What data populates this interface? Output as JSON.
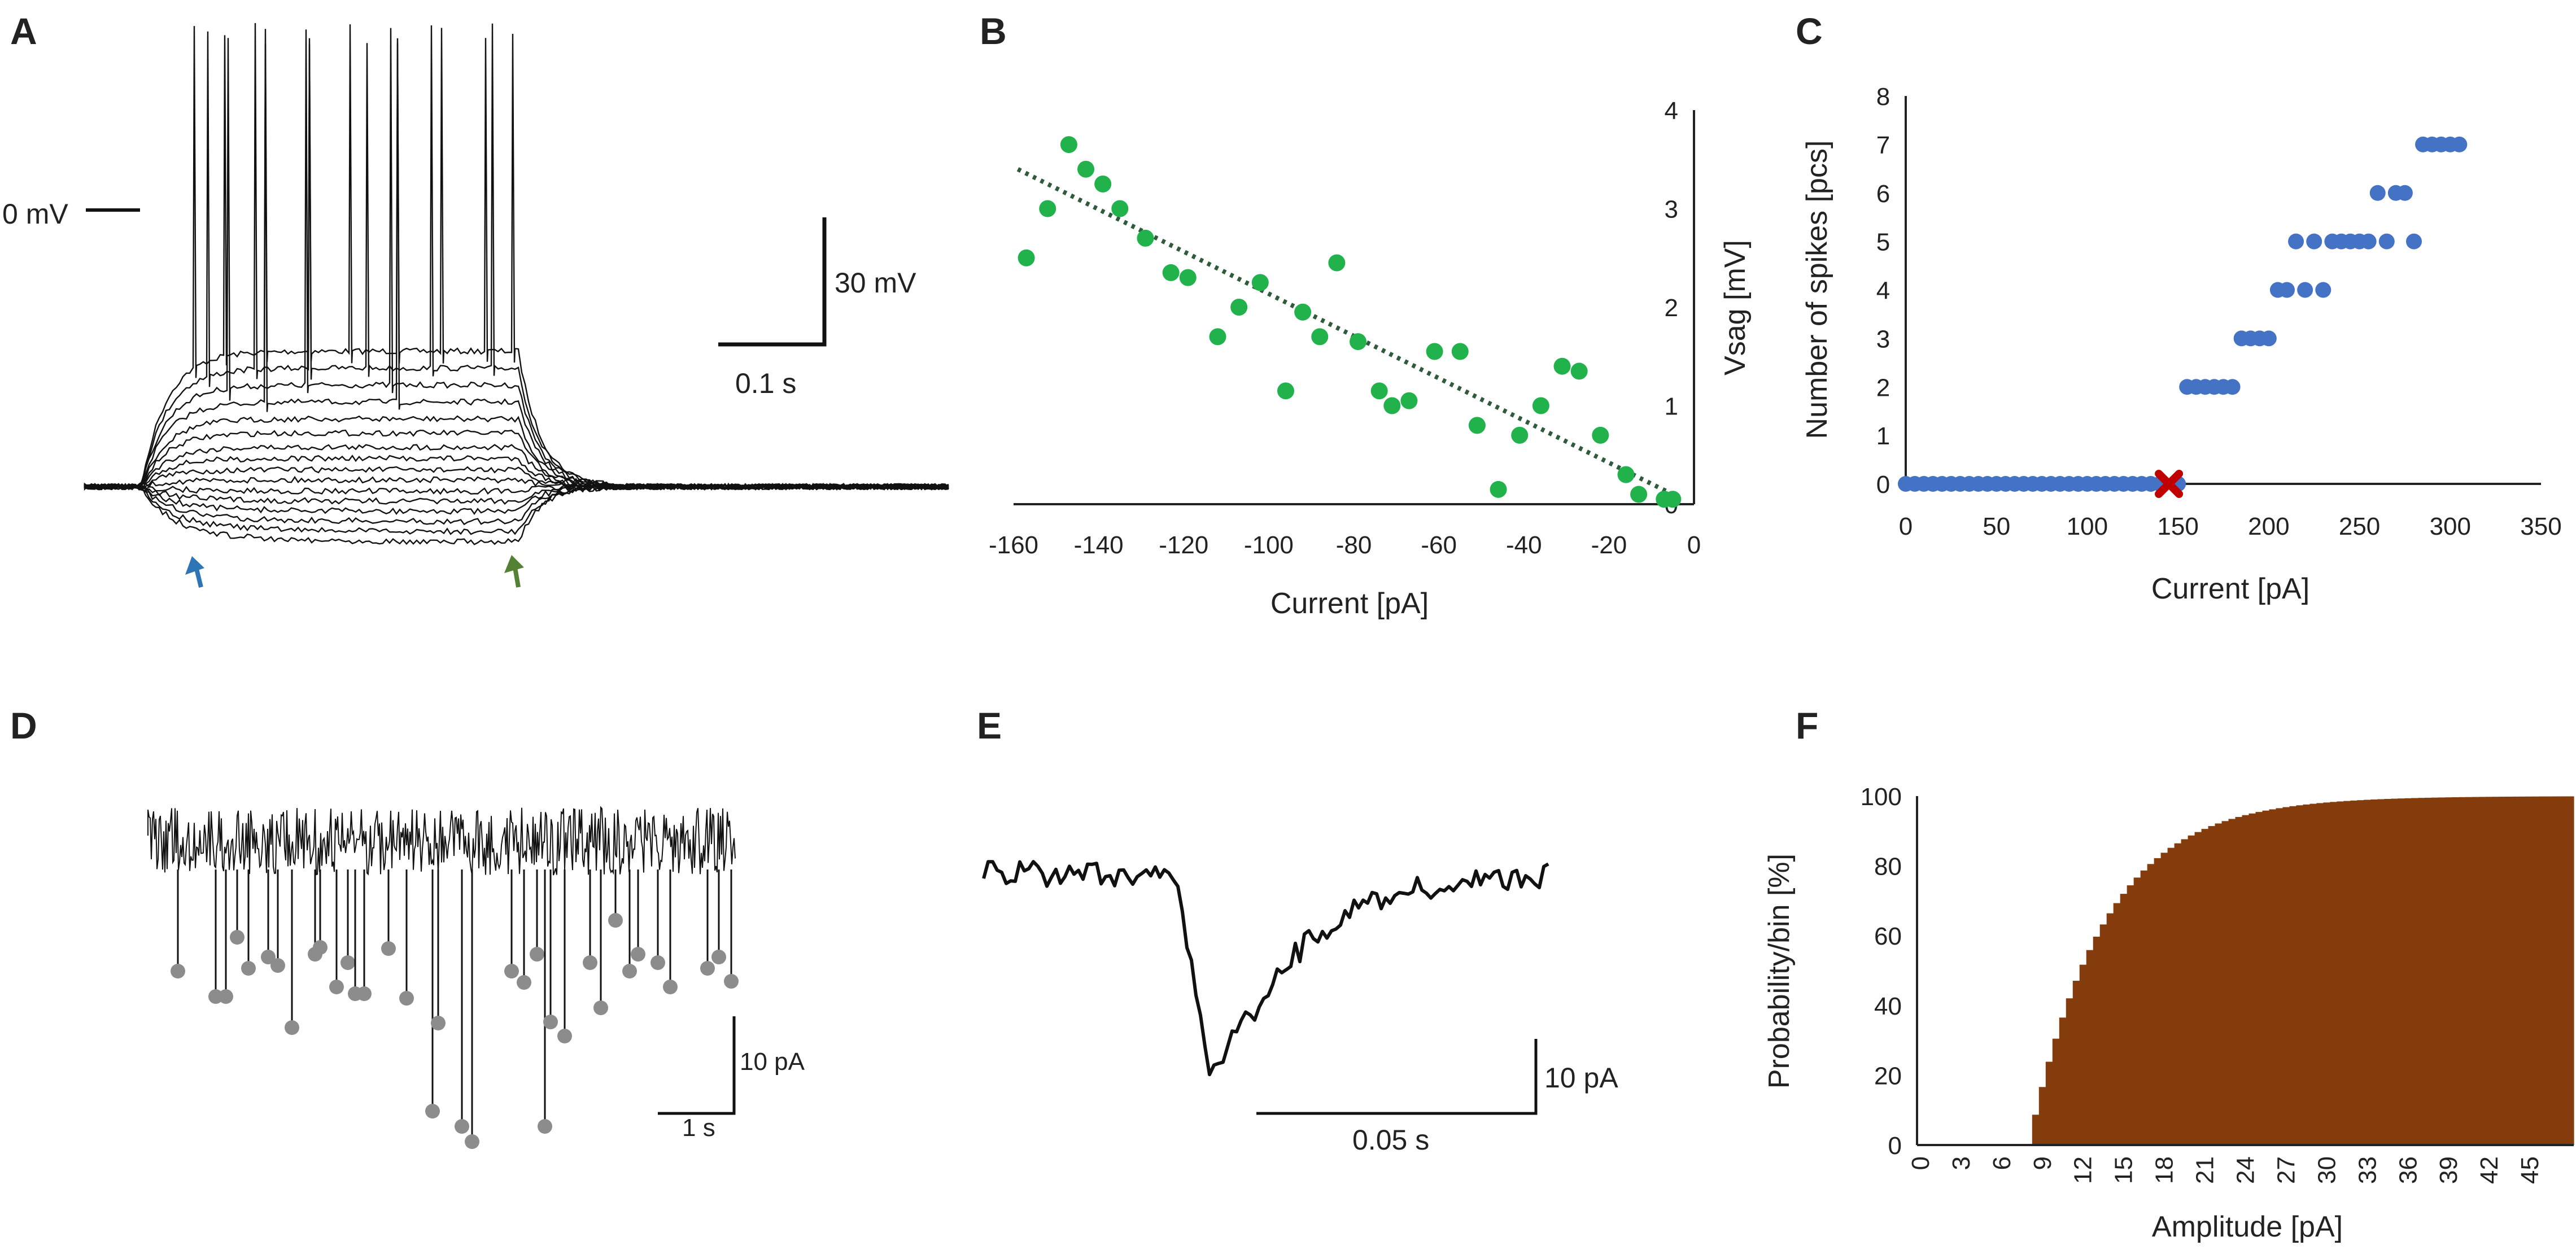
{
  "panels": {
    "A": {
      "label": "A",
      "zero_label": "0 mV",
      "scale_v": "30 mV",
      "scale_t": "0.1 s",
      "arrow_colors": {
        "start": "#2e75b6",
        "end": "#548235"
      }
    },
    "D": {
      "label": "D",
      "scale_i": "10 pA",
      "scale_t": "1 s"
    },
    "E": {
      "label": "E",
      "scale_i": "10 pA",
      "scale_t": "0.05 s"
    }
  },
  "chart_data": [
    {
      "id": "B",
      "label": "B",
      "type": "scatter",
      "xlabel": "Current [pA]",
      "ylabel": "Vsag [mV]",
      "xlim": [
        -160,
        0
      ],
      "ylim": [
        0,
        4
      ],
      "xticks": [
        "-160",
        "-140",
        "-120",
        "-100",
        "-80",
        "-60",
        "-40",
        "-20",
        "0"
      ],
      "yticks": [
        "0",
        "1",
        "2",
        "3",
        "4"
      ],
      "color": "#22b24c",
      "trend_color": "#2f5a3b",
      "trend": {
        "x": [
          -159,
          -5
        ],
        "y": [
          3.4,
          0.1
        ]
      },
      "points": {
        "x": [
          -157,
          -152,
          -147,
          -143,
          -139,
          -135,
          -129,
          -123,
          -119,
          -112,
          -107,
          -102,
          -96,
          -92,
          -88,
          -84,
          -79,
          -74,
          -71,
          -67,
          -61,
          -55,
          -51,
          -46,
          -41,
          -36,
          -31,
          -27,
          -22,
          -16,
          -13,
          -7,
          -5
        ],
        "y": [
          2.5,
          3.0,
          3.65,
          3.4,
          3.25,
          3.0,
          2.7,
          2.35,
          2.3,
          1.7,
          2.0,
          2.25,
          1.15,
          1.95,
          1.7,
          2.45,
          1.65,
          1.15,
          1.0,
          1.05,
          1.55,
          1.55,
          0.8,
          0.15,
          0.7,
          1.0,
          1.4,
          1.35,
          0.7,
          0.3,
          0.1,
          0.05,
          0.05
        ]
      }
    },
    {
      "id": "C",
      "label": "C",
      "type": "scatter",
      "xlabel": "Current [pA]",
      "ylabel": "Number of spikes [pcs]",
      "xlim": [
        0,
        350
      ],
      "ylim": [
        0,
        8
      ],
      "xticks": [
        "0",
        "50",
        "100",
        "150",
        "200",
        "250",
        "300",
        "350"
      ],
      "yticks": [
        "0",
        "1",
        "2",
        "3",
        "4",
        "5",
        "6",
        "7",
        "8"
      ],
      "color": "#4472c4",
      "marker_color": "#c00000",
      "marker": {
        "x": 145,
        "y": 0
      },
      "points": {
        "x": [
          0,
          5,
          10,
          15,
          20,
          25,
          30,
          35,
          40,
          45,
          50,
          55,
          60,
          65,
          70,
          75,
          80,
          85,
          90,
          95,
          100,
          105,
          110,
          115,
          120,
          125,
          130,
          135,
          140,
          150,
          155,
          160,
          165,
          170,
          175,
          180,
          185,
          190,
          195,
          200,
          205,
          210,
          215,
          220,
          225,
          230,
          235,
          240,
          245,
          250,
          255,
          260,
          265,
          270,
          275,
          280,
          285,
          290,
          295,
          300,
          305
        ],
        "y": [
          0,
          0,
          0,
          0,
          0,
          0,
          0,
          0,
          0,
          0,
          0,
          0,
          0,
          0,
          0,
          0,
          0,
          0,
          0,
          0,
          0,
          0,
          0,
          0,
          0,
          0,
          0,
          0,
          0,
          0,
          2,
          2,
          2,
          2,
          2,
          2,
          3,
          3,
          3,
          3,
          4,
          4,
          5,
          4,
          5,
          4,
          5,
          5,
          5,
          5,
          5,
          6,
          5,
          6,
          6,
          5,
          7,
          7,
          7,
          7,
          7
        ]
      }
    },
    {
      "id": "F",
      "label": "F",
      "type": "bar",
      "xlabel": "Amplitude [pA]",
      "ylabel": "Probability/bin [%]",
      "ylim": [
        0,
        100
      ],
      "xticks": [
        "0",
        "3",
        "6",
        "9",
        "12",
        "15",
        "18",
        "21",
        "24",
        "27",
        "30",
        "33",
        "36",
        "39",
        "42",
        "45"
      ],
      "yticks": [
        "0",
        "20",
        "40",
        "60",
        "80",
        "100"
      ],
      "color": "#843c0c",
      "bin_width": 0.5,
      "x_start": 0,
      "bins": 97,
      "onset": 8,
      "plateau": 100,
      "scale": 5.5
    }
  ]
}
